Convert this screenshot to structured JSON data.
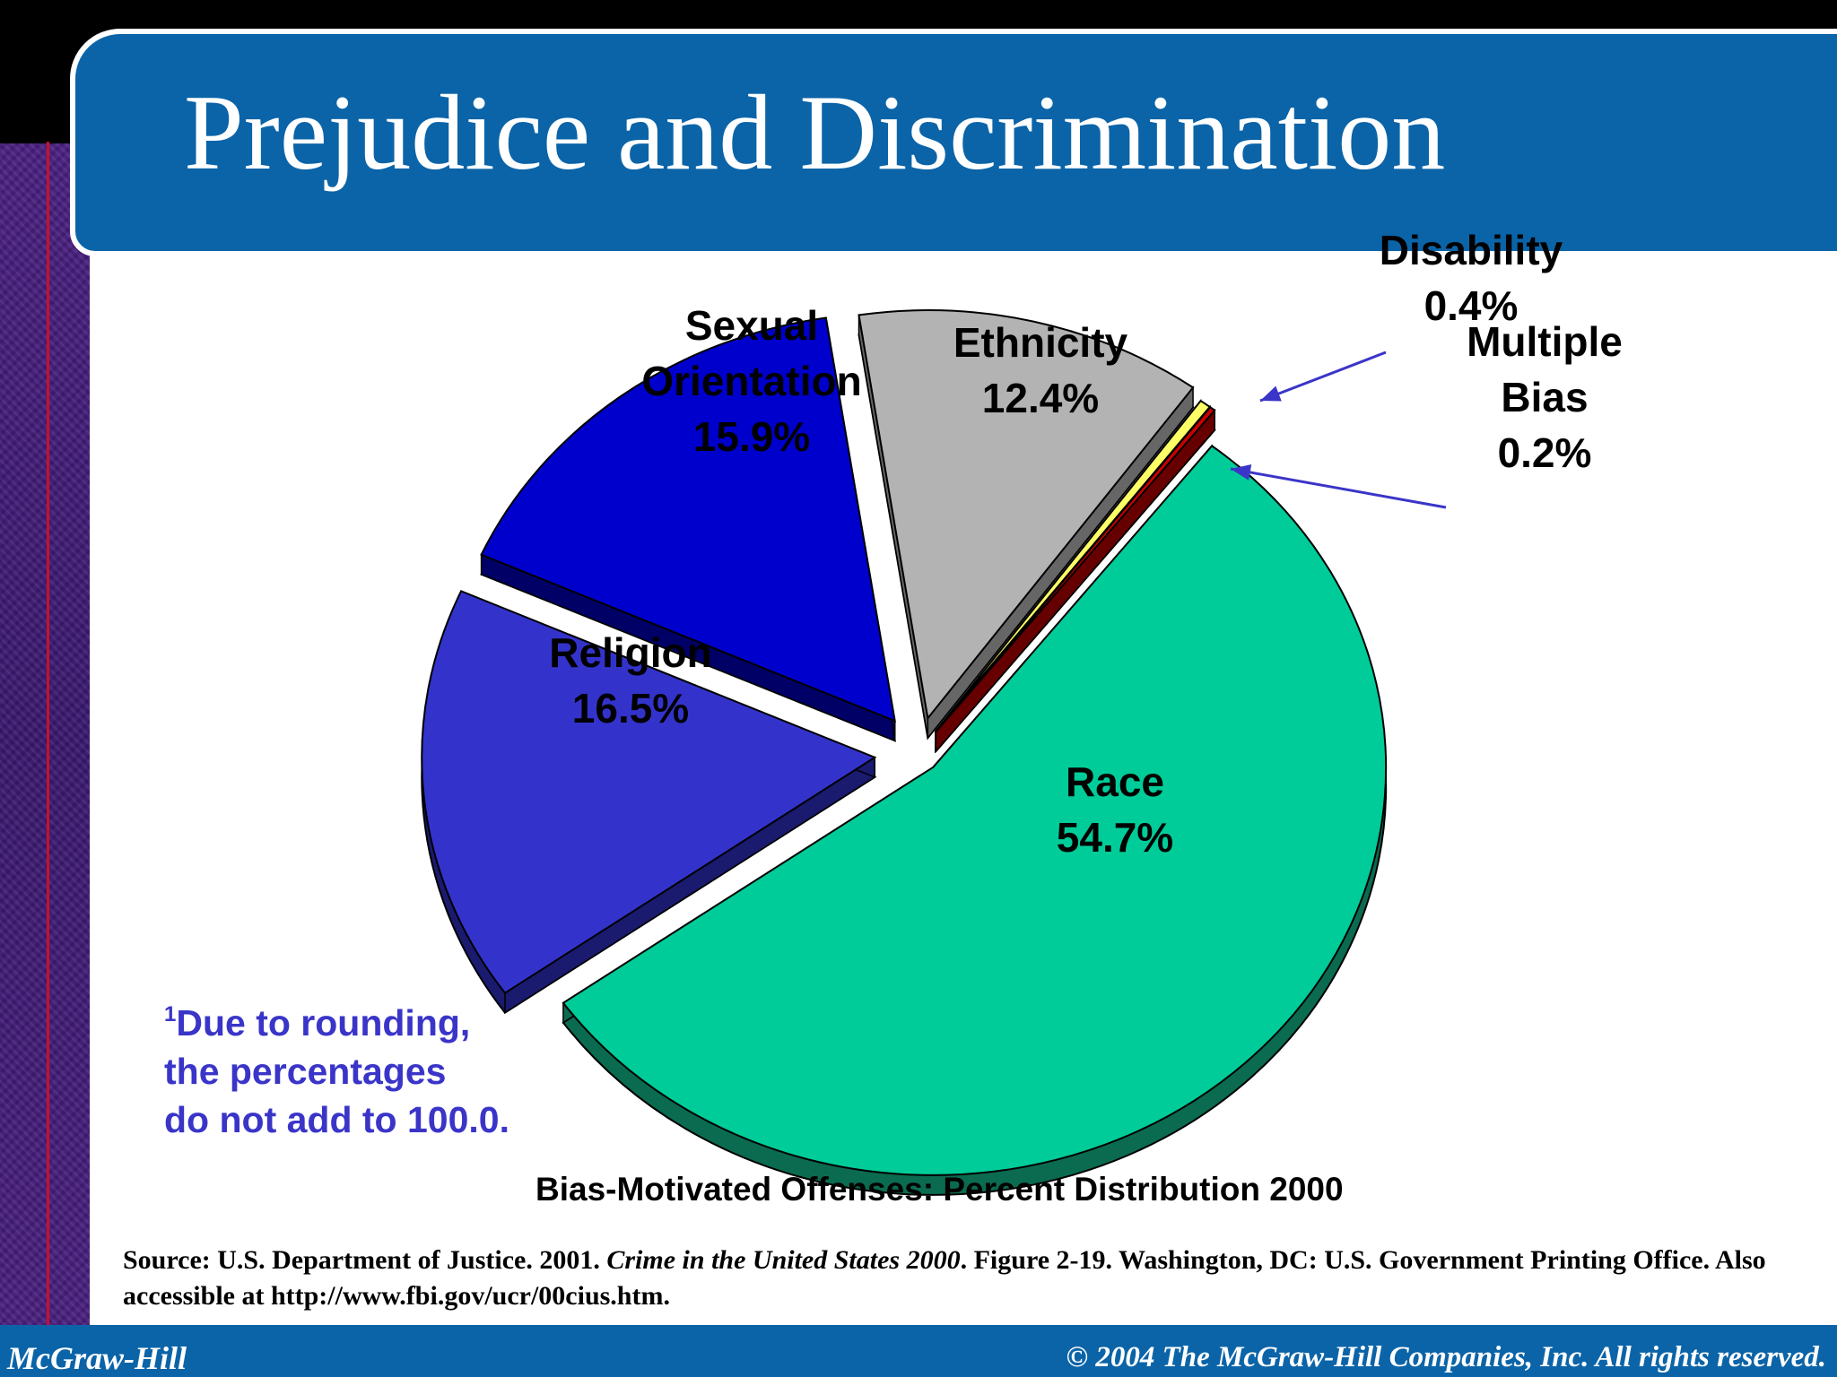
{
  "slide": {
    "title": "Prejudice and Discrimination",
    "footnote_marker": "1",
    "footnote_lines": [
      "Due to rounding,",
      "the percentages",
      "do not add to 100.0."
    ],
    "source_prefix": "Source: U.S. Department of Justice. 2001. ",
    "source_title": "Crime in the United States 2000",
    "source_suffix": ". Figure 2-19. Washington, DC: U.S. Government Printing Office. Also accessible at http://www.fbi.gov/ucr/00cius.htm.",
    "footer_left": "McGraw-Hill",
    "footer_right": "© 2004 The McGraw-Hill Companies, Inc. All rights reserved."
  },
  "colors": {
    "title_banner": "#0b64a8",
    "background_strip": "#3f1a74",
    "footnote_text": "#3a35c8"
  },
  "chart_data": {
    "type": "pie",
    "title": "Bias-Motivated Offenses: Percent Distribution 2000",
    "style": "3d exploded",
    "slices": [
      {
        "name": "Race",
        "label_lines": [
          "Race",
          "54.7%"
        ],
        "value": 54.7,
        "color": "#00cc99",
        "side_color": "#0b6b50"
      },
      {
        "name": "Religion",
        "label_lines": [
          "Religion",
          "16.5%"
        ],
        "value": 16.5,
        "color": "#3333cc",
        "side_color": "#1a1a6e"
      },
      {
        "name": "Sexual Orientation",
        "label_lines": [
          "Sexual",
          "Orientation",
          "15.9%"
        ],
        "value": 15.9,
        "color": "#0000cc",
        "side_color": "#000066"
      },
      {
        "name": "Ethnicity",
        "label_lines": [
          "Ethnicity",
          "12.4%"
        ],
        "value": 12.4,
        "color": "#b3b3b3",
        "side_color": "#666666"
      },
      {
        "name": "Disability",
        "label_lines": [
          "Disability",
          "0.4%"
        ],
        "value": 0.4,
        "color": "#ffff66",
        "side_color": "#8c8c00"
      },
      {
        "name": "Multiple Bias",
        "label_lines": [
          "Multiple",
          "Bias",
          "0.2%"
        ],
        "value": 0.2,
        "color": "#cc0000",
        "side_color": "#660000"
      }
    ]
  }
}
